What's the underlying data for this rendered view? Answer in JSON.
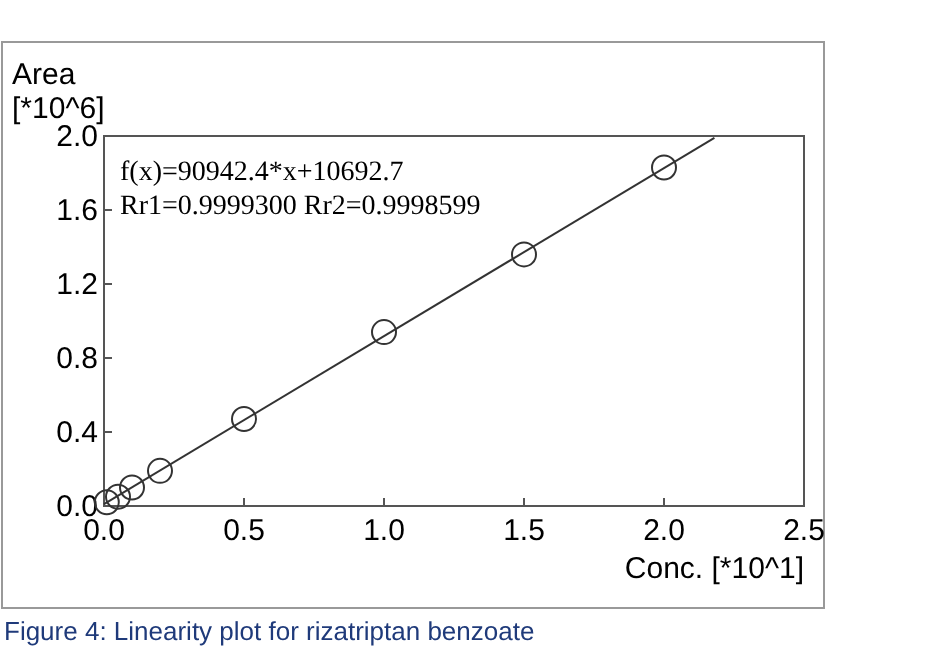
{
  "chart_data": {
    "type": "scatter",
    "xlabel": "Conc. [*10^1]",
    "ylabel": "Area [*10^6]",
    "xlim": [
      0,
      2.5
    ],
    "xticks": [
      {
        "value": 0,
        "label": "0.0"
      },
      0.5,
      {
        "value": 1,
        "label": "1.0"
      },
      1.5,
      {
        "value": 2,
        "label": "2.0"
      },
      2.5
    ],
    "ylim": [
      0,
      2
    ],
    "yticks": [
      {
        "value": 0,
        "label": "0.0"
      },
      0.4,
      0.8,
      1.2,
      1.6,
      {
        "value": 2,
        "label": "2.0"
      }
    ],
    "grid": false,
    "marker": "circle",
    "series": [
      {
        "color": "#333333",
        "x": [
          0.01,
          0.05,
          0.1,
          0.2,
          0.5,
          1,
          1.5,
          2
        ],
        "values": [
          0.02,
          0.05,
          0.1,
          0.19,
          0.47,
          0.94,
          1.36,
          1.83
        ]
      },
      {
        "type": "line",
        "color": "#333333",
        "x": [
          0,
          2.18
        ],
        "values": [
          0.01,
          1.99
        ],
        "marker": "none"
      }
    ],
    "annotations": [
      "f(x)=90942.4*x+10692.7",
      "Rr1=0.9999300 Rr2=0.9998599",
      "Figure 4: Linearity plot for rizatriptan benzoate"
    ]
  }
}
